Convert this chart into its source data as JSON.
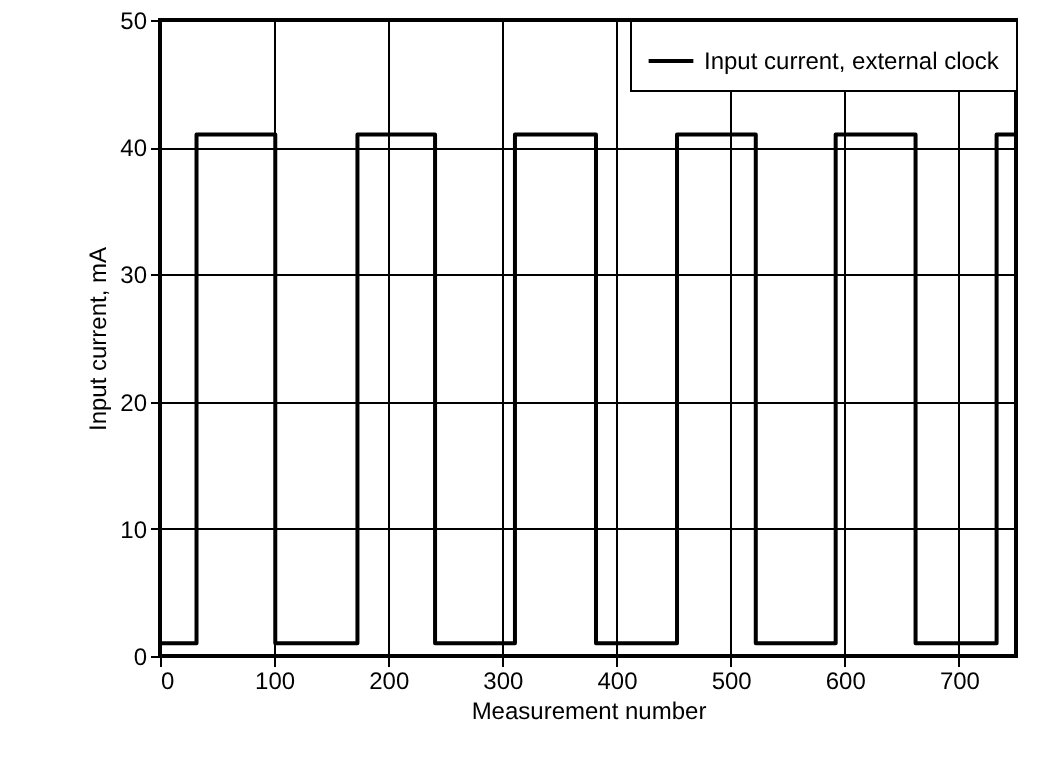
{
  "chart_data": {
    "type": "line",
    "xlabel": "Measurement number",
    "ylabel": "Input current, mA",
    "x": [
      0,
      32,
      32,
      32,
      32,
      101,
      101,
      101,
      101,
      173,
      173,
      173,
      173,
      241,
      241,
      241,
      241,
      311,
      311,
      382,
      382,
      382,
      382,
      453,
      453,
      453,
      453,
      522,
      522,
      522,
      522,
      592,
      592,
      592,
      592,
      662,
      662,
      662,
      662,
      733,
      733,
      733,
      733,
      750
    ],
    "series": [
      {
        "name": "Input current, external clock",
        "color": "#000000",
        "values": [
          1,
          1,
          12.7,
          34.5,
          41,
          41,
          28.3,
          10.5,
          1,
          1,
          4.3,
          9.5,
          41,
          41,
          33.7,
          24.8,
          1,
          1,
          41,
          41,
          31.6,
          4.5,
          1,
          1,
          9.5,
          19.5,
          41,
          41,
          27.4,
          15.8,
          1,
          1,
          5.0,
          11.6,
          41,
          41,
          28.4,
          18.7,
          1,
          1,
          21.3,
          40.5,
          41,
          41
        ]
      }
    ],
    "xlim": [
      0,
      750
    ],
    "xticks": [
      0,
      100,
      200,
      300,
      400,
      500,
      600,
      700
    ],
    "ylim": [
      0,
      50
    ],
    "yticks": [
      0,
      10,
      20,
      30,
      40,
      50
    ],
    "grid": true,
    "legend": "top right",
    "marker": "none",
    "line_style": "solid"
  }
}
